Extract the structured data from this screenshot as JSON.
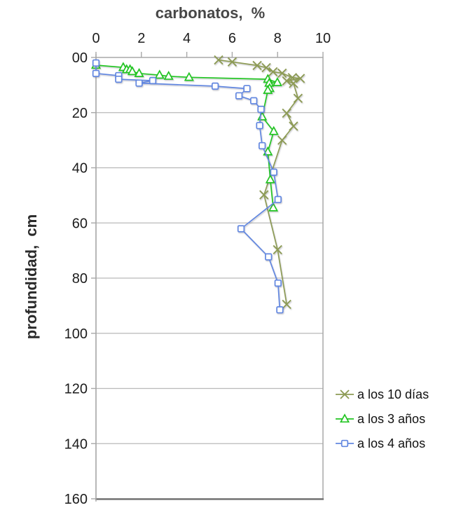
{
  "chart_data": {
    "type": "line",
    "title": "carbonatos,  %",
    "xlabel": "carbonatos, %",
    "ylabel": "profundidad,  cm",
    "x_axis": {
      "min": 0,
      "max": 10,
      "ticks": [
        0,
        2,
        4,
        6,
        8,
        10
      ],
      "position": "top"
    },
    "y_axis": {
      "min": 0,
      "max": 160,
      "tick_step": 20,
      "inverted": true,
      "tick_labels": [
        "00",
        "20",
        "40",
        "60",
        "80",
        "100",
        "120",
        "140",
        "160"
      ]
    },
    "grid": "horizontal",
    "legend_position": "right",
    "axis_note": "x axis = carbonate content (%), y axis = depth (cm) increasing downward",
    "series": [
      {
        "name": "a los 10 días",
        "marker": "x",
        "color": "#8d9b55",
        "points": [
          [
            5.4,
            0.9
          ],
          [
            6.0,
            1.6
          ],
          [
            7.1,
            2.9
          ],
          [
            7.5,
            3.7
          ],
          [
            7.8,
            5.2
          ],
          [
            8.2,
            5.7
          ],
          [
            8.65,
            7.3
          ],
          [
            9.0,
            7.6
          ],
          [
            8.4,
            8.5
          ],
          [
            8.7,
            9.4
          ],
          [
            8.9,
            14.8
          ],
          [
            8.4,
            20.2
          ],
          [
            8.7,
            24.9
          ],
          [
            8.2,
            30.0
          ],
          [
            7.4,
            49.8
          ],
          [
            8.0,
            69.7
          ],
          [
            8.4,
            89.5
          ]
        ]
      },
      {
        "name": "a los 3 años",
        "marker": "triangle",
        "color": "#22c522",
        "points": [
          [
            0,
            2.8
          ],
          [
            1.2,
            3.6
          ],
          [
            1.35,
            4.4
          ],
          [
            1.5,
            4.4
          ],
          [
            1.6,
            5.1
          ],
          [
            1.9,
            5.8
          ],
          [
            2.8,
            6.4
          ],
          [
            3.2,
            6.8
          ],
          [
            4.1,
            7.2
          ],
          [
            7.57,
            7.9
          ],
          [
            7.99,
            9.1
          ],
          [
            7.63,
            9.3
          ],
          [
            7.65,
            11.2
          ],
          [
            7.57,
            11.9
          ],
          [
            7.32,
            21.5
          ],
          [
            7.83,
            26.8
          ],
          [
            7.57,
            34.2
          ],
          [
            7.68,
            44.3
          ],
          [
            7.81,
            54.5
          ]
        ]
      },
      {
        "name": "a los 4 años",
        "marker": "square",
        "color": "#6287e0",
        "points": [
          [
            0,
            2.0
          ],
          [
            0,
            5.8
          ],
          [
            1.0,
            6.6
          ],
          [
            1.0,
            7.9
          ],
          [
            2.5,
            8.4
          ],
          [
            1.9,
            9.3
          ],
          [
            5.25,
            10.4
          ],
          [
            6.65,
            11.3
          ],
          [
            6.3,
            13.9
          ],
          [
            6.95,
            15.7
          ],
          [
            7.27,
            18.8
          ],
          [
            7.21,
            24.7
          ],
          [
            7.32,
            32.0
          ],
          [
            7.83,
            41.6
          ],
          [
            8.02,
            51.5
          ],
          [
            6.39,
            62.1
          ],
          [
            7.6,
            72.3
          ],
          [
            8.02,
            81.8
          ],
          [
            8.1,
            91.5
          ]
        ]
      }
    ],
    "colors": {
      "grid": "#b9b9b9",
      "plot_border": "#a3a3a3",
      "bottom_border": "#757575",
      "axis_line": "#a8a8a8",
      "title_text": "#474747",
      "tick_text": "#1c1c1c"
    }
  }
}
